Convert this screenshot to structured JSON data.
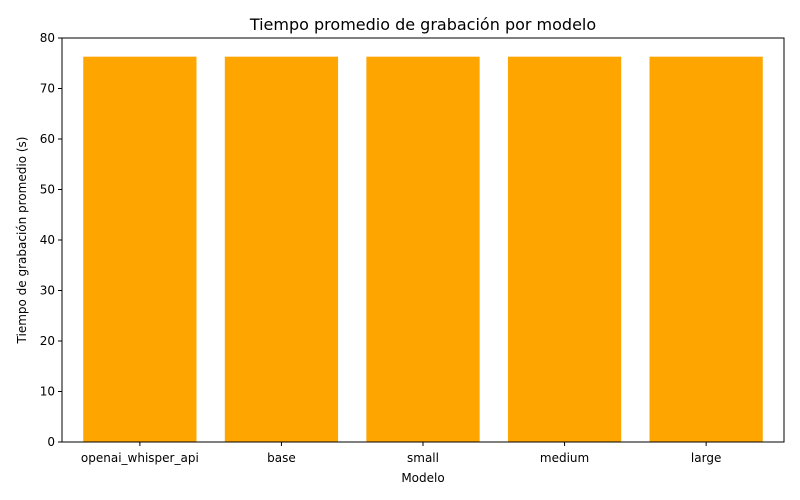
{
  "chart_data": {
    "type": "bar",
    "title": "Tiempo promedio de grabación por modelo",
    "xlabel": "Modelo",
    "ylabel": "Tiempo de grabación promedio (s)",
    "categories": [
      "openai_whisper_api",
      "base",
      "small",
      "medium",
      "large"
    ],
    "values": [
      76.3,
      76.3,
      76.3,
      76.3,
      76.3
    ],
    "ylim": [
      0,
      80
    ],
    "yticks": [
      0,
      10,
      20,
      30,
      40,
      50,
      60,
      70,
      80
    ],
    "grid": false,
    "bar_color": "#ffa500"
  }
}
